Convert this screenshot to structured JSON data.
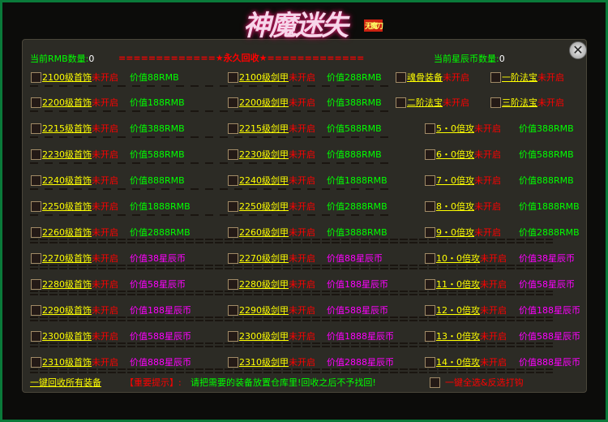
{
  "logo": {
    "title": "神魔迷失",
    "tag": "无魔刀"
  },
  "header": {
    "rmb_label": "当前RMB数量:",
    "rmb_value": "0",
    "banner": "=============★永久回收★=============",
    "star_label": "当前星辰币数量:",
    "star_value": "0"
  },
  "status": "未开启",
  "rows": [
    {
      "c1": "2100级首饰",
      "v1": "价值88RMB",
      "c2": "2100级剑甲",
      "v2": "价值288RMB",
      "c3": "魂骨装备",
      "c4": "一阶法宝",
      "kind": "rmb"
    },
    {
      "c1": "2200级首饰",
      "v1": "价值188RMB",
      "c2": "2200级剑甲",
      "v2": "价值388RMB",
      "c3": "二阶法宝",
      "c4": "三阶法宝",
      "kind": "rmb"
    },
    {
      "c1": "2215级首饰",
      "v1": "价值388RMB",
      "c2": "2215级剑甲",
      "v2": "价值588RMB",
      "c3": "5・0倍攻",
      "v3": "价值388RMB",
      "kind": "rmb"
    },
    {
      "c1": "2230级首饰",
      "v1": "价值588RMB",
      "c2": "2230级剑甲",
      "v2": "价值888RMB",
      "c3": "6・0倍攻",
      "v3": "价值588RMB",
      "kind": "rmb"
    },
    {
      "c1": "2240级首饰",
      "v1": "价值888RMB",
      "c2": "2240级剑甲",
      "v2": "价值1888RMB",
      "c3": "7・0倍攻",
      "v3": "价值888RMB",
      "kind": "rmb"
    },
    {
      "c1": "2250级首饰",
      "v1": "价值1888RMB",
      "c2": "2250级剑甲",
      "v2": "价值2888RMB",
      "c3": "8・0倍攻",
      "v3": "价值1888RMB",
      "kind": "rmb"
    },
    {
      "c1": "2260级首饰",
      "v1": "价值2888RMB",
      "c2": "2260级剑甲",
      "v2": "价值3888RMB",
      "c3": "9・0倍攻",
      "v3": "价值2888RMB",
      "kind": "rmb"
    },
    {
      "c1": "2270级首饰",
      "v1": "价值38星辰币",
      "c2": "2270级剑甲",
      "v2": "价值88星辰币",
      "c3": "10・0倍攻",
      "v3": "价值38星辰币",
      "kind": "star"
    },
    {
      "c1": "2280级首饰",
      "v1": "价值58星辰币",
      "c2": "2280级剑甲",
      "v2": "价值188星辰币",
      "c3": "11・0倍攻",
      "v3": "价值58星辰币",
      "kind": "star"
    },
    {
      "c1": "2290级首饰",
      "v1": "价值188星辰币",
      "c2": "2290级剑甲",
      "v2": "价值588星辰币",
      "c3": "12・0倍攻",
      "v3": "价值188星辰币",
      "kind": "star"
    },
    {
      "c1": "2300级首饰",
      "v1": "价值588星辰币",
      "c2": "2300级剑甲",
      "v2": "价值1888星辰币",
      "c3": "13・0倍攻",
      "v3": "价值588星辰币",
      "kind": "star"
    },
    {
      "c1": "2310级首饰",
      "v1": "价值888星辰币",
      "c2": "2310级剑甲",
      "v2": "价值2888星辰币",
      "c3": "14・0倍攻",
      "v3": "价值888星辰币",
      "kind": "star"
    }
  ],
  "footer": {
    "recycle_all": "一键回收所有装备",
    "tip_label": "【重要提示】:",
    "tip_text": "请把需要的装备放置仓库里!回收之后不予找回!",
    "select_all": "一键全选&反选打钩"
  },
  "colors": {
    "item": "#ffff00",
    "status": "#ff0000",
    "rmb": "#00ff00",
    "star": "#ff00ff",
    "frame": "#0a7a3a"
  }
}
